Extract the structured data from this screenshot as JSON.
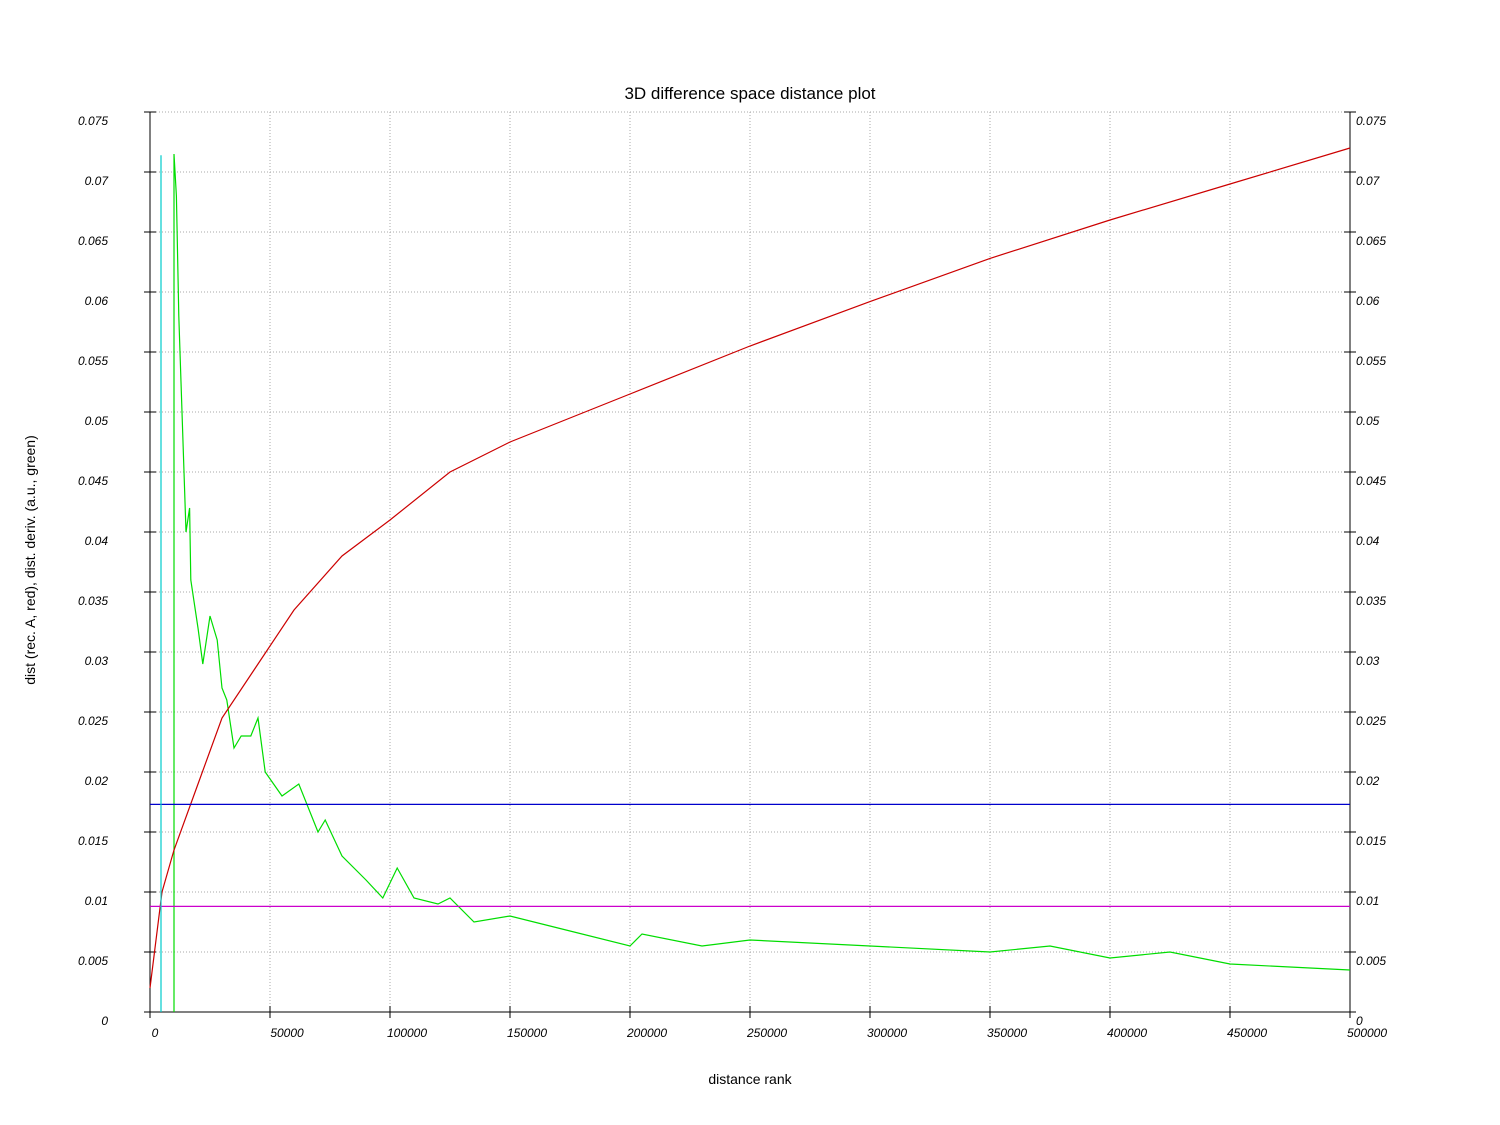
{
  "chart_data": {
    "type": "line",
    "title": "3D difference space distance plot",
    "x_label": "distance rank",
    "y_label": "dist (rec. A, red), dist. deriv. (a.u., green)",
    "xlim": [
      0,
      500000
    ],
    "ylim": [
      0,
      0.075
    ],
    "xticks": [
      0,
      50000,
      100000,
      150000,
      200000,
      250000,
      300000,
      350000,
      400000,
      450000,
      500000
    ],
    "yticks": [
      0,
      0.005,
      0.01,
      0.015,
      0.02,
      0.025,
      0.03,
      0.035,
      0.04,
      0.045,
      0.05,
      0.055,
      0.06,
      0.065,
      0.07,
      0.075
    ],
    "grid": true,
    "series": [
      {
        "color": "#00dd00",
        "x": [
          10000,
          10000,
          11000,
          12000,
          15000,
          16500,
          17000,
          20000,
          22000,
          25000,
          28000,
          30000,
          32000,
          35000,
          38000,
          42000,
          45000,
          48000,
          55000,
          62000,
          70000,
          73000,
          80000,
          90000,
          97000,
          103000,
          110000,
          120000,
          125000,
          135000,
          150000,
          170000,
          200000,
          205000,
          230000,
          250000,
          300000,
          350000,
          375000,
          400000,
          425000,
          450000,
          500000
        ],
        "values": [
          0,
          0.0715,
          0.068,
          0.058,
          0.04,
          0.042,
          0.036,
          0.032,
          0.029,
          0.033,
          0.031,
          0.027,
          0.026,
          0.022,
          0.023,
          0.023,
          0.0245,
          0.02,
          0.018,
          0.019,
          0.015,
          0.016,
          0.013,
          0.011,
          0.0095,
          0.012,
          0.0095,
          0.009,
          0.0095,
          0.0075,
          0.008,
          0.007,
          0.0055,
          0.0065,
          0.0055,
          0.006,
          0.0055,
          0.005,
          0.0055,
          0.0045,
          0.005,
          0.004,
          0.0035
        ]
      },
      {
        "color": "#cc0000",
        "x": [
          0,
          5000,
          10000,
          20000,
          30000,
          45000,
          60000,
          80000,
          100000,
          125000,
          150000,
          175000,
          200000,
          250000,
          300000,
          350000,
          400000,
          450000,
          500000
        ],
        "values": [
          0.002,
          0.01,
          0.0135,
          0.019,
          0.0245,
          0.029,
          0.0335,
          0.038,
          0.041,
          0.045,
          0.0475,
          0.0495,
          0.0515,
          0.0555,
          0.0592,
          0.0628,
          0.066,
          0.069,
          0.072
        ]
      },
      {
        "color": "#0000cc",
        "x": [
          0,
          500000
        ],
        "values": [
          0.0173,
          0.0173
        ]
      },
      {
        "color": "#cc00cc",
        "x": [
          0,
          500000
        ],
        "values": [
          0.0088,
          0.0088
        ]
      },
      {
        "color": "#00cccc",
        "x": [
          4583,
          4583
        ],
        "values": [
          0,
          0.0714
        ]
      }
    ]
  }
}
